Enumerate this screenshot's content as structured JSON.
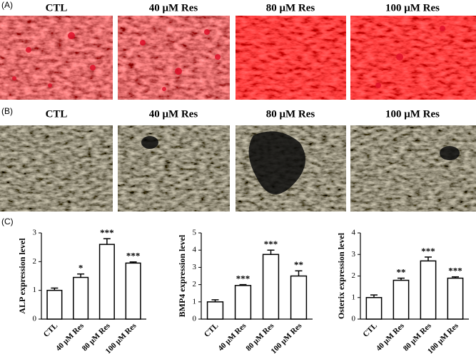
{
  "panels": {
    "a": {
      "label": "(A)",
      "headers": [
        "CTL",
        "40 μM Res",
        "80 μM Res",
        "100 μM Res"
      ]
    },
    "b": {
      "label": "(B)",
      "headers": [
        "CTL",
        "40 μM Res",
        "80 μM Res",
        "100 μM Res"
      ]
    },
    "c": {
      "label": "(C)"
    }
  },
  "chart_data": [
    {
      "type": "bar",
      "y_label": "ALP expression level",
      "categories": [
        "CTL",
        "40 μM Res",
        "80 μM Res",
        "100 μM Res"
      ],
      "values": [
        1.0,
        1.45,
        2.6,
        1.95
      ],
      "errors": [
        0.08,
        0.12,
        0.2,
        0.04
      ],
      "annotations": [
        null,
        "*",
        "***",
        "***"
      ],
      "color": "#ffffff",
      "ylim": [
        0,
        3
      ],
      "yticks": [
        0,
        1,
        2,
        3
      ]
    },
    {
      "type": "bar",
      "y_label": "BMP4 expression level",
      "categories": [
        "CTL",
        "40 μM Res",
        "80 μM Res",
        "100 μM Res"
      ],
      "values": [
        1.0,
        1.95,
        3.75,
        2.5
      ],
      "errors": [
        0.12,
        0.05,
        0.25,
        0.3
      ],
      "annotations": [
        null,
        "***",
        "***",
        "**"
      ],
      "color": "#ffffff",
      "ylim": [
        0,
        5
      ],
      "yticks": [
        0,
        1,
        2,
        3,
        4,
        5
      ]
    },
    {
      "type": "bar",
      "y_label": "Osterix expression level",
      "categories": [
        "CTL",
        "40 μM Res",
        "80 μM Res",
        "100 μM Res"
      ],
      "values": [
        1.0,
        1.8,
        2.7,
        1.9
      ],
      "errors": [
        0.12,
        0.1,
        0.18,
        0.06
      ],
      "annotations": [
        null,
        "**",
        "***",
        "***"
      ],
      "color": "#ffffff",
      "ylim": [
        0,
        4
      ],
      "yticks": [
        0,
        1,
        2,
        3,
        4
      ]
    }
  ]
}
